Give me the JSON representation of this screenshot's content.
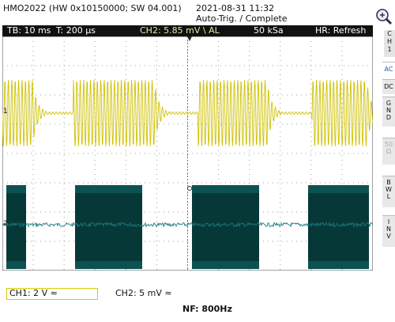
{
  "header": {
    "device": "HMO2022 (HW 0x10150000; SW 04.001)",
    "datetime": "2021-08-31 11:32",
    "trigger_status": "Auto-Trig. / Complete"
  },
  "info_bar": {
    "timebase": "TB: 10 ms",
    "trigger_time": "T: 200 µs",
    "ch2_trigger": "CH2: 5.85 mV \\ AL",
    "sample_rate": "50 kSa",
    "mode": "HR: Refresh"
  },
  "side_menu": {
    "channel": [
      "C",
      "H",
      "1"
    ],
    "items": [
      {
        "lines": [
          "AC"
        ]
      },
      {
        "lines": [
          "DC"
        ]
      },
      {
        "lines": [
          "G",
          "N",
          "D"
        ]
      },
      {
        "lines": [
          "50",
          "Ω"
        ]
      },
      {
        "lines": [
          "B",
          "W",
          "L"
        ]
      },
      {
        "lines": [
          "I",
          "N",
          "V"
        ]
      }
    ]
  },
  "footer": {
    "ch1": "CH1: 2 V ≈",
    "ch2": "CH2: 5 mV ≈",
    "nf": "NF: 800Hz"
  },
  "colors": {
    "ch1": "#cfc200",
    "ch2": "#0a4d4d",
    "ch2_fill": "#0d5252",
    "grid": "#9aa09a",
    "info_bg": "#111111"
  },
  "markers": {
    "ch1": "1",
    "ch2": "2"
  }
}
